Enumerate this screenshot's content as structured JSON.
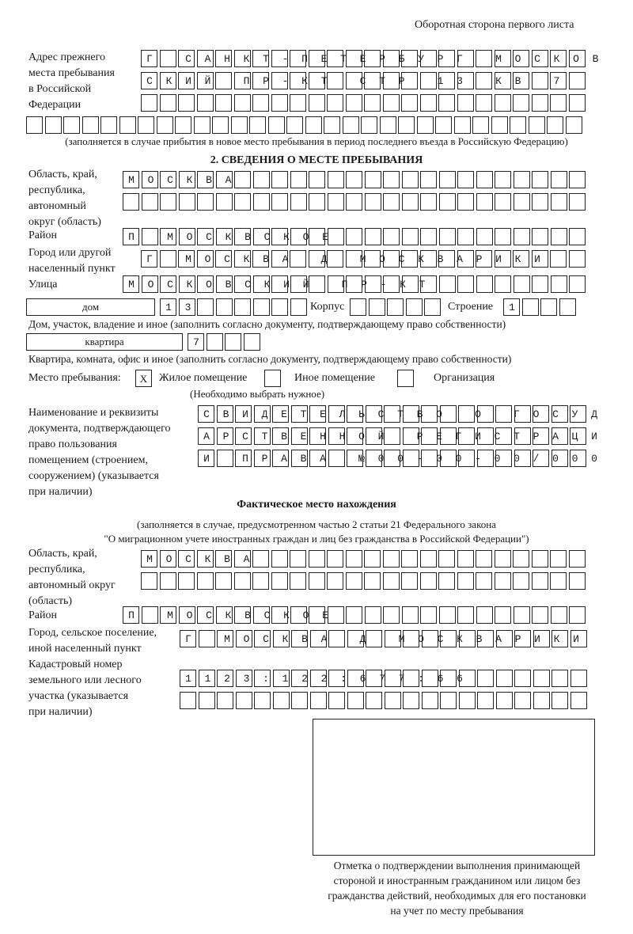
{
  "header": {
    "page_side": "Оборотная сторона первого листа"
  },
  "prev_address": {
    "label": [
      "Адрес прежнего",
      "места пребывания",
      "в Российской",
      "Федерации"
    ],
    "rows": [
      "Г САНКТ-ПЕТЕРБУРГ МОСКОВ",
      "СКИЙ ПР-КТ СТР 13 КВ 7",
      "",
      ""
    ],
    "note": "(заполняется в случае прибытия в новое место пребывания в период последнего въезда в Российскую Федерацию)"
  },
  "section2": {
    "title": "2. СВЕДЕНИЯ О МЕСТЕ ПРЕБЫВАНИЯ",
    "region_label": [
      "Область, край,",
      "республика,",
      "автономный",
      "округ (область)"
    ],
    "region_rows": [
      "МОСКВА",
      ""
    ],
    "district_label": "Район",
    "district": "П МОСКВСКОЕ",
    "city_label": [
      "Город или другой",
      "населенный пункт"
    ],
    "city": "Г МОСКВА Д МОСКВАРИКИ",
    "street_label": "Улица",
    "street": "МОСКОВСКИЙ ПР-КТ",
    "house_type": "дом",
    "house": "13",
    "korpus_label": "Корпус",
    "korpus": "",
    "building_label": "Строение",
    "building": "1",
    "house_note": "Дом, участок, владение и иное (заполнить согласно документу, подтверждающему право собственности)",
    "flat_type": "квартира",
    "flat": "7",
    "flat_note": "Квартира, комната, офис и иное (заполнить согласно документу, подтверждающему право собственности)",
    "place_label": "Место пребывания:",
    "place_options": [
      {
        "label": "Жилое помещение",
        "mark": "X"
      },
      {
        "label": "Иное помещение",
        "mark": ""
      },
      {
        "label": "Организация",
        "mark": ""
      }
    ],
    "place_note": "(Необходимо выбрать нужное)",
    "doc_label": [
      "Наименование и реквизиты",
      "документа, подтверждающего",
      "право пользования",
      "помещением (строением,",
      "сооружением) (указывается",
      "при наличии)"
    ],
    "doc_rows": [
      "СВИДЕТЕЛЬСТВО О ГОСУД",
      "АРСТВЕННОЙ РЕГИСТРАЦИ",
      "И ПРАВА №00-00-00/000"
    ]
  },
  "actual": {
    "title": "Фактическое место нахождения",
    "note": [
      "(заполняется в случае, предусмотренном частью 2 статьи 21 Федерального закона",
      "\"О миграционном учете иностранных граждан и лиц без гражданства в Российской Федерации\")"
    ],
    "region_label": [
      "Область, край,",
      "республика,",
      "автономный округ",
      "(область)"
    ],
    "region_rows": [
      "МОСКВА",
      ""
    ],
    "district_label": "Район",
    "district": "П МОСКВСКОЕ",
    "city_label": [
      "Город, сельское поселение,",
      "иной населенный пункт"
    ],
    "city": "Г МОСКВА Д МОСКВАРИКИ",
    "cadastral_label": [
      "Кадастровый номер",
      "земельного или лесного",
      "участка (указывается",
      "при наличии)"
    ],
    "cadastral_rows": [
      "1123:122:677:66",
      ""
    ]
  },
  "stamp": {
    "caption": [
      "Отметка о подтверждении выполнения принимающей",
      "стороной и иностранным гражданином или лицом без",
      "гражданства действий, необходимых для его постановки",
      "на учет по месту пребывания"
    ]
  }
}
